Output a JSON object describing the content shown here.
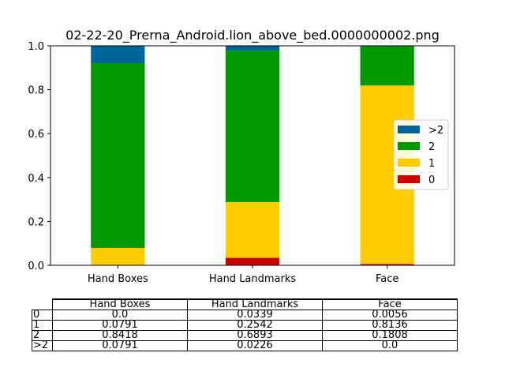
{
  "chart_data": {
    "type": "bar",
    "stacked": true,
    "title": "02-22-20_Prerna_Android.lion_above_bed.0000000002.png",
    "xlabel": "",
    "ylabel": "",
    "ylim": [
      0,
      1
    ],
    "yticks": [
      "0.0",
      "0.2",
      "0.4",
      "0.6",
      "0.8",
      "1.0"
    ],
    "categories": [
      "Hand Boxes",
      "Hand Landmarks",
      "Face"
    ],
    "series": [
      {
        "name": "0",
        "color": "#cc0000",
        "values": [
          0.0,
          0.0339,
          0.0056
        ]
      },
      {
        "name": "1",
        "color": "#ffcc00",
        "values": [
          0.0791,
          0.2542,
          0.8136
        ]
      },
      {
        "name": "2",
        "color": "#009900",
        "values": [
          0.8418,
          0.6893,
          0.1808
        ]
      },
      {
        "name": ">2",
        "color": "#006699",
        "values": [
          0.0791,
          0.0226,
          0.0
        ]
      }
    ],
    "legend": {
      "placement": "center-right",
      "order": [
        ">2",
        "2",
        "1",
        "0"
      ]
    },
    "grid": false
  },
  "table": {
    "columns": [
      "Hand Boxes",
      "Hand Landmarks",
      "Face"
    ],
    "rows": [
      {
        "label": "0",
        "cells": [
          "0.0",
          "0.0339",
          "0.0056"
        ]
      },
      {
        "label": "1",
        "cells": [
          "0.0791",
          "0.2542",
          "0.8136"
        ]
      },
      {
        "label": "2",
        "cells": [
          "0.8418",
          "0.6893",
          "0.1808"
        ]
      },
      {
        "label": ">2",
        "cells": [
          "0.0791",
          "0.0226",
          "0.0"
        ]
      }
    ]
  }
}
